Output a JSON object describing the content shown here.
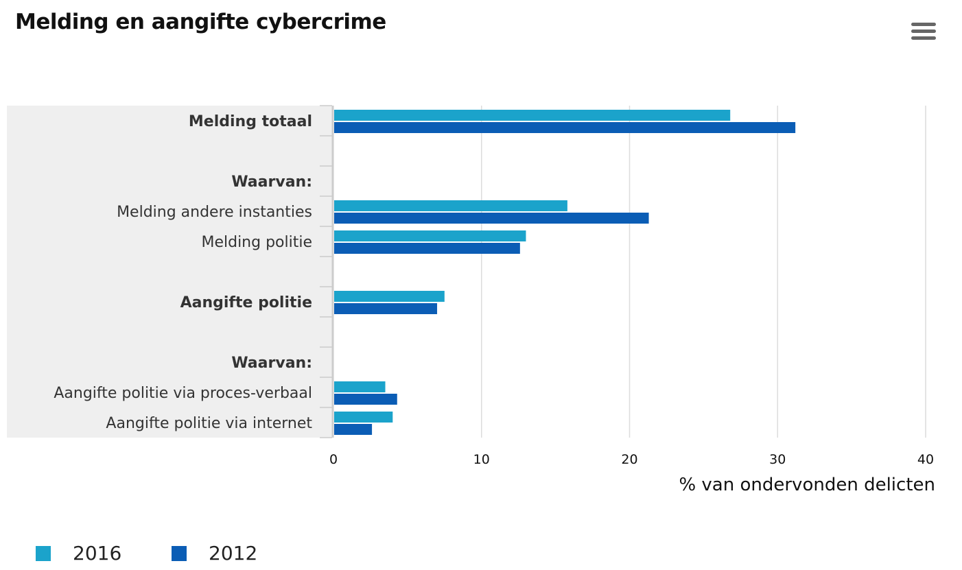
{
  "title": "Melding en aangifte cybercrime",
  "menu_icon": "hamburger-menu-icon",
  "chart_data": {
    "type": "bar",
    "orientation": "horizontal",
    "title": "Melding en aangifte cybercrime",
    "xlabel": "% van ondervonden delicten",
    "xlim": [
      0,
      40
    ],
    "xticks": [
      0,
      10,
      20,
      30,
      40
    ],
    "grid": true,
    "legend_position": "bottom-left",
    "categories": [
      {
        "label": "Melding totaal",
        "bold": true
      },
      {
        "label": "",
        "bold": false
      },
      {
        "label": "Waarvan:",
        "bold": true
      },
      {
        "label": "Melding andere instanties",
        "bold": false
      },
      {
        "label": "Melding politie",
        "bold": false
      },
      {
        "label": "",
        "bold": false
      },
      {
        "label": "Aangifte politie",
        "bold": true
      },
      {
        "label": "",
        "bold": false
      },
      {
        "label": "Waarvan:",
        "bold": true
      },
      {
        "label": "Aangifte politie via proces-verbaal",
        "bold": false
      },
      {
        "label": "Aangifte politie via internet",
        "bold": false
      }
    ],
    "series": [
      {
        "name": "2016",
        "color": "#1ba3cb",
        "values": [
          26.8,
          null,
          null,
          15.8,
          13.0,
          null,
          7.5,
          null,
          null,
          3.5,
          4.0
        ]
      },
      {
        "name": "2012",
        "color": "#0b5db5",
        "values": [
          31.2,
          null,
          null,
          21.3,
          12.6,
          null,
          7.0,
          null,
          null,
          4.3,
          2.6
        ]
      }
    ]
  }
}
